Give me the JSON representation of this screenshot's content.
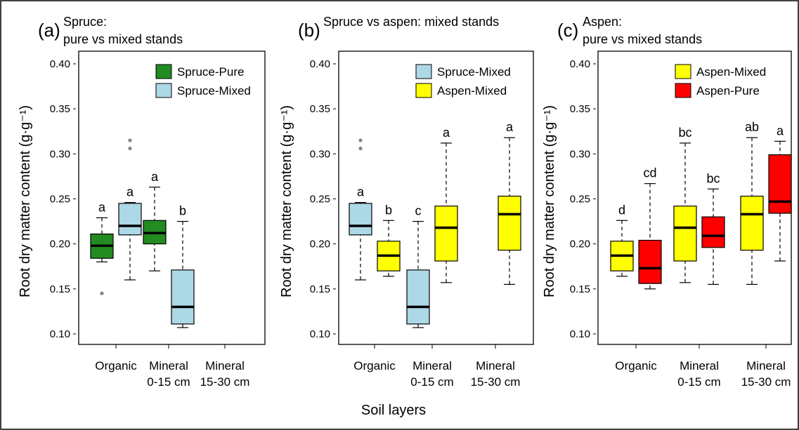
{
  "colors": {
    "spruce_pure": "#228b22",
    "spruce_mixed": "#add8e6",
    "aspen_mixed": "#ffff00",
    "aspen_pure": "#ff0000"
  },
  "figure": {
    "shared_xlabel": "Soil layers"
  },
  "chart_data": [
    {
      "type": "box",
      "panel_label": "(a)",
      "title_lines": [
        "Spruce:",
        "pure vs mixed stands"
      ],
      "ylabel": "Root dry matter content (g·g⁻¹)",
      "ylim": [
        0.1,
        0.4
      ],
      "yticks": [
        "0.10",
        "0.15",
        "0.20",
        "0.25",
        "0.30",
        "0.35",
        "0.40"
      ],
      "categories": [
        [
          "Organic"
        ],
        [
          "Mineral",
          "0-15 cm"
        ],
        [
          "Mineral",
          "15-30 cm"
        ]
      ],
      "legend": {
        "position": "top-right",
        "entries": [
          {
            "name": "Spruce-Pure",
            "color_key": "spruce_pure"
          },
          {
            "name": "Spruce-Mixed",
            "color_key": "spruce_mixed"
          }
        ]
      },
      "boxes": [
        {
          "series": "Spruce-Pure",
          "category": 0,
          "offset": -1,
          "color_key": "spruce_pure",
          "min": 0.18,
          "q1": 0.184,
          "median": 0.198,
          "q3": 0.211,
          "max": 0.229,
          "outliers": [
            0.145
          ],
          "letter": "a"
        },
        {
          "series": "Spruce-Mixed",
          "category": 0,
          "offset": 1,
          "color_key": "spruce_mixed",
          "min": 0.16,
          "q1": 0.21,
          "median": 0.22,
          "q3": 0.245,
          "max": 0.246,
          "outliers": [
            0.306,
            0.315
          ],
          "letter": "a"
        },
        {
          "series": "Spruce-Pure",
          "category": 1,
          "offset": -1,
          "color_key": "spruce_pure",
          "min": 0.17,
          "q1": 0.2,
          "median": 0.212,
          "q3": 0.226,
          "max": 0.263,
          "outliers": [],
          "letter": "a"
        },
        {
          "series": "Spruce-Mixed",
          "category": 1,
          "offset": 1,
          "color_key": "spruce_mixed",
          "min": 0.107,
          "q1": 0.111,
          "median": 0.13,
          "q3": 0.171,
          "max": 0.225,
          "outliers": [],
          "letter": "b"
        }
      ]
    },
    {
      "type": "box",
      "panel_label": "(b)",
      "title_lines": [
        "Spruce vs aspen: mixed stands"
      ],
      "ylabel": "Root dry matter content (g·g⁻¹)",
      "ylim": [
        0.1,
        0.4
      ],
      "yticks": [
        "0.10",
        "0.15",
        "0.20",
        "0.25",
        "0.30",
        "0.35",
        "0.40"
      ],
      "categories": [
        [
          "Organic"
        ],
        [
          "Mineral",
          "0-15 cm"
        ],
        [
          "Mineral",
          "15-30 cm"
        ]
      ],
      "legend": {
        "position": "top-right",
        "entries": [
          {
            "name": "Spruce-Mixed",
            "color_key": "spruce_mixed"
          },
          {
            "name": "Aspen-Mixed",
            "color_key": "aspen_mixed"
          }
        ]
      },
      "boxes": [
        {
          "series": "Spruce-Mixed",
          "category": 0,
          "offset": -1,
          "color_key": "spruce_mixed",
          "min": 0.16,
          "q1": 0.21,
          "median": 0.22,
          "q3": 0.245,
          "max": 0.246,
          "outliers": [
            0.306,
            0.315
          ],
          "letter": "a"
        },
        {
          "series": "Aspen-Mixed",
          "category": 0,
          "offset": 1,
          "color_key": "aspen_mixed",
          "min": 0.164,
          "q1": 0.17,
          "median": 0.187,
          "q3": 0.203,
          "max": 0.226,
          "outliers": [],
          "letter": "b"
        },
        {
          "series": "Spruce-Mixed",
          "category": 1,
          "offset": -1,
          "color_key": "spruce_mixed",
          "min": 0.107,
          "q1": 0.111,
          "median": 0.13,
          "q3": 0.171,
          "max": 0.225,
          "outliers": [],
          "letter": "c"
        },
        {
          "series": "Aspen-Mixed",
          "category": 1,
          "offset": 1,
          "color_key": "aspen_mixed",
          "min": 0.157,
          "q1": 0.181,
          "median": 0.218,
          "q3": 0.242,
          "max": 0.312,
          "outliers": [],
          "letter": "a"
        },
        {
          "series": "Aspen-Mixed",
          "category": 2,
          "offset": 1,
          "color_key": "aspen_mixed",
          "min": 0.155,
          "q1": 0.193,
          "median": 0.233,
          "q3": 0.253,
          "max": 0.318,
          "outliers": [],
          "letter": "a"
        }
      ]
    },
    {
      "type": "box",
      "panel_label": "(c)",
      "title_lines": [
        "Aspen:",
        "pure vs mixed stands"
      ],
      "ylabel": "Root dry matter content (g·g⁻¹)",
      "ylim": [
        0.1,
        0.4
      ],
      "yticks": [
        "0.10",
        "0.15",
        "0.20",
        "0.25",
        "0.30",
        "0.35",
        "0.40"
      ],
      "categories": [
        [
          "Organic"
        ],
        [
          "Mineral",
          "0-15 cm"
        ],
        [
          "Mineral",
          "15-30 cm"
        ]
      ],
      "legend": {
        "position": "top-right",
        "entries": [
          {
            "name": "Aspen-Mixed",
            "color_key": "aspen_mixed"
          },
          {
            "name": "Aspen-Pure",
            "color_key": "aspen_pure"
          }
        ]
      },
      "boxes": [
        {
          "series": "Aspen-Mixed",
          "category": 0,
          "offset": -1,
          "color_key": "aspen_mixed",
          "min": 0.164,
          "q1": 0.17,
          "median": 0.187,
          "q3": 0.203,
          "max": 0.226,
          "outliers": [],
          "letter": "d"
        },
        {
          "series": "Aspen-Pure",
          "category": 0,
          "offset": 1,
          "color_key": "aspen_pure",
          "min": 0.15,
          "q1": 0.156,
          "median": 0.173,
          "q3": 0.204,
          "max": 0.267,
          "outliers": [],
          "letter": "cd"
        },
        {
          "series": "Aspen-Mixed",
          "category": 1,
          "offset": -1,
          "color_key": "aspen_mixed",
          "min": 0.157,
          "q1": 0.181,
          "median": 0.218,
          "q3": 0.242,
          "max": 0.312,
          "outliers": [],
          "letter": "bc"
        },
        {
          "series": "Aspen-Pure",
          "category": 1,
          "offset": 1,
          "color_key": "aspen_pure",
          "min": 0.155,
          "q1": 0.196,
          "median": 0.209,
          "q3": 0.23,
          "max": 0.261,
          "outliers": [],
          "letter": "bc"
        },
        {
          "series": "Aspen-Mixed",
          "category": 2,
          "offset": -1,
          "color_key": "aspen_mixed",
          "min": 0.155,
          "q1": 0.193,
          "median": 0.233,
          "q3": 0.253,
          "max": 0.318,
          "outliers": [],
          "letter": "ab"
        },
        {
          "series": "Aspen-Pure",
          "category": 2,
          "offset": 1,
          "color_key": "aspen_pure",
          "min": 0.181,
          "q1": 0.234,
          "median": 0.247,
          "q3": 0.299,
          "max": 0.314,
          "outliers": [],
          "letter": "a"
        }
      ]
    }
  ]
}
